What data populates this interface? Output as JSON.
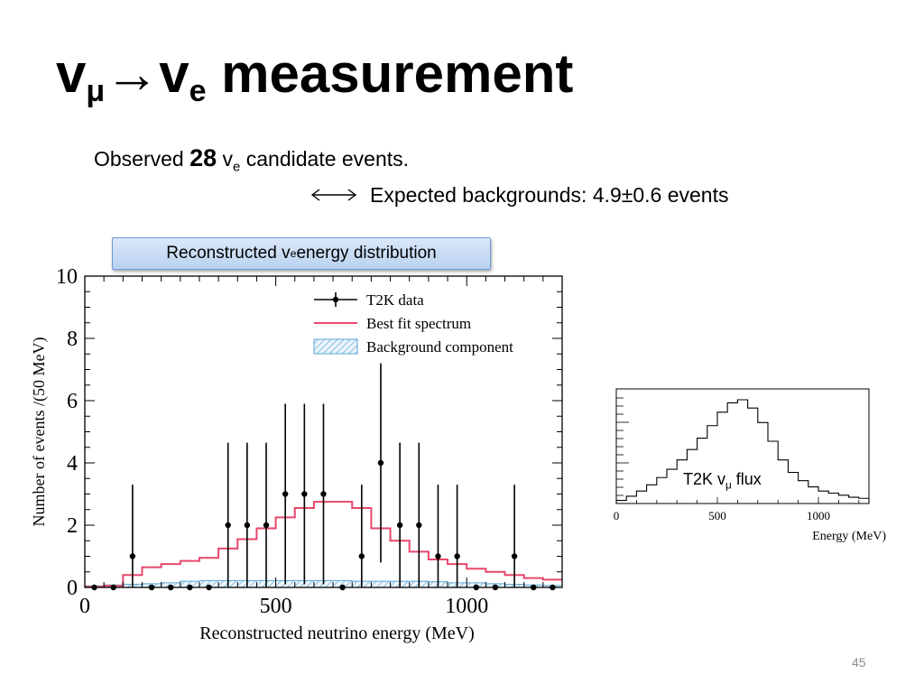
{
  "slide": {
    "title_base1": "v",
    "title_sub1": "μ",
    "title_arrow": "→",
    "title_base2": "v",
    "title_sub2": "e",
    "title_rest": " measurement",
    "observed_prefix": "Observed ",
    "observed_count": "28",
    "observed_nu": " v",
    "observed_sub": "e",
    "observed_suffix": " candidate events.",
    "expected_text": "Expected backgrounds: 4.9±0.6 events",
    "label_box_prefix": "Reconstructed v",
    "label_box_sub": "e",
    "label_box_suffix": " energy distribution",
    "page_number": "45"
  },
  "flux_label": {
    "prefix": "T2K v",
    "sub": "μ",
    "suffix": " flux"
  },
  "chart_data": [
    {
      "type": "bar",
      "title": "",
      "xlabel": "Reconstructed neutrino energy (MeV)",
      "ylabel": "Number of events /(50 MeV)",
      "xlim": [
        0,
        1250
      ],
      "ylim": [
        0,
        10
      ],
      "xticks": [
        0,
        500,
        1000
      ],
      "yticks": [
        0,
        2,
        4,
        6,
        8,
        10
      ],
      "legend_position": "top-right",
      "legend": [
        "T2K data",
        "Best fit spectrum",
        "Background component"
      ],
      "colors": {
        "best_fit": "#e8476c",
        "background": "#5aa6d6",
        "data": "#000000"
      },
      "bin_width_mev": 50,
      "data": {
        "name": "T2K data",
        "x": [
          25,
          75,
          125,
          175,
          225,
          275,
          325,
          375,
          425,
          475,
          525,
          575,
          625,
          675,
          725,
          775,
          825,
          875,
          925,
          975,
          1025,
          1075,
          1125,
          1175,
          1225
        ],
        "y": [
          0,
          0,
          1,
          0,
          0,
          0,
          0,
          2,
          2,
          2,
          3,
          3,
          3,
          0,
          1,
          4,
          2,
          2,
          1,
          1,
          0,
          0,
          1,
          0,
          0
        ],
        "err": [
          0,
          0,
          2.3,
          0,
          0,
          0,
          0,
          2.65,
          2.65,
          2.65,
          2.9,
          2.9,
          2.9,
          0,
          2.3,
          3.2,
          2.65,
          2.65,
          2.3,
          2.3,
          0,
          0,
          2.3,
          0,
          0
        ]
      },
      "best_fit": {
        "name": "Best fit spectrum",
        "bin_edges": [
          0,
          50,
          100,
          150,
          200,
          250,
          300,
          350,
          400,
          450,
          500,
          550,
          600,
          650,
          700,
          750,
          800,
          850,
          900,
          950,
          1000,
          1050,
          1100,
          1150,
          1200,
          1250
        ],
        "values": [
          0.02,
          0.05,
          0.4,
          0.65,
          0.75,
          0.85,
          0.95,
          1.25,
          1.55,
          1.9,
          2.25,
          2.55,
          2.75,
          2.75,
          2.55,
          1.9,
          1.5,
          1.15,
          0.9,
          0.75,
          0.6,
          0.5,
          0.4,
          0.3,
          0.25
        ]
      },
      "background": {
        "name": "Background component",
        "bin_edges": [
          0,
          50,
          100,
          150,
          200,
          250,
          300,
          350,
          400,
          450,
          500,
          550,
          600,
          650,
          700,
          750,
          800,
          850,
          900,
          950,
          1000,
          1050,
          1100,
          1150,
          1200,
          1250
        ],
        "values": [
          0.05,
          0.08,
          0.1,
          0.12,
          0.15,
          0.2,
          0.22,
          0.22,
          0.22,
          0.22,
          0.22,
          0.22,
          0.22,
          0.22,
          0.2,
          0.2,
          0.2,
          0.2,
          0.18,
          0.15,
          0.15,
          0.12,
          0.1,
          0.08,
          0.06
        ]
      }
    },
    {
      "type": "line",
      "title": "",
      "xlabel": "Energy (MeV)",
      "ylabel": "",
      "xlim": [
        0,
        1250
      ],
      "xticks": [
        0,
        500,
        1000
      ],
      "series": [
        {
          "step_edges": [
            0,
            50,
            100,
            150,
            200,
            250,
            300,
            350,
            400,
            450,
            500,
            550,
            600,
            650,
            700,
            750,
            800,
            850,
            900,
            950,
            1000,
            1050,
            1100,
            1150,
            1200,
            1250
          ],
          "values": [
            0.03,
            0.07,
            0.12,
            0.18,
            0.25,
            0.33,
            0.42,
            0.52,
            0.63,
            0.75,
            0.88,
            0.97,
            1.0,
            0.92,
            0.78,
            0.6,
            0.42,
            0.3,
            0.22,
            0.16,
            0.12,
            0.1,
            0.08,
            0.06,
            0.05
          ]
        }
      ]
    }
  ]
}
